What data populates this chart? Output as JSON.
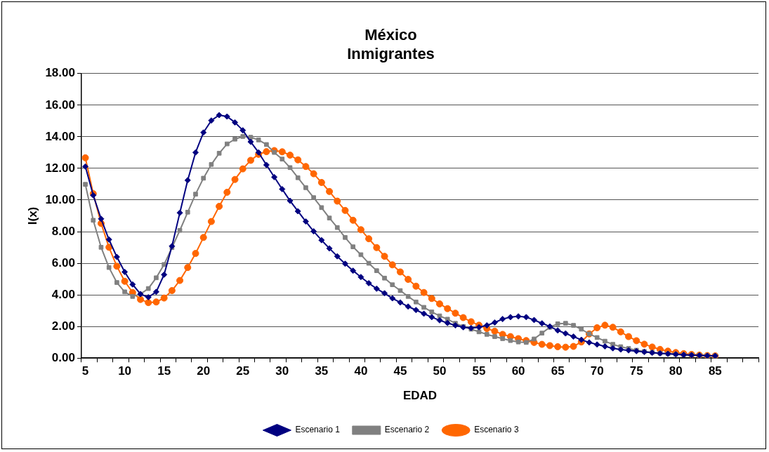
{
  "chart_data": {
    "type": "line",
    "title": [
      "México",
      "Inmigrantes"
    ],
    "xlabel": "EDAD",
    "ylabel": "I(x)",
    "x": [
      5,
      6,
      7,
      8,
      9,
      10,
      11,
      12,
      13,
      14,
      15,
      16,
      17,
      18,
      19,
      20,
      21,
      22,
      23,
      24,
      25,
      26,
      27,
      28,
      29,
      30,
      31,
      32,
      33,
      34,
      35,
      36,
      37,
      38,
      39,
      40,
      41,
      42,
      43,
      44,
      45,
      46,
      47,
      48,
      49,
      50,
      51,
      52,
      53,
      54,
      55,
      56,
      57,
      58,
      59,
      60,
      61,
      62,
      63,
      64,
      65,
      66,
      67,
      68,
      69,
      70,
      71,
      72,
      73,
      74,
      75,
      76,
      77,
      78,
      79,
      80,
      81,
      82,
      83,
      84,
      85
    ],
    "series": [
      {
        "name": "Escenario 1",
        "color": "#000080",
        "marker": "diamond",
        "values": [
          12.12,
          10.3,
          8.81,
          7.5,
          6.4,
          5.45,
          4.66,
          4.05,
          3.85,
          4.19,
          5.28,
          7.08,
          9.19,
          11.25,
          13.01,
          14.27,
          15.03,
          15.37,
          15.28,
          14.91,
          14.41,
          13.68,
          13.01,
          12.22,
          11.45,
          10.69,
          9.95,
          9.29,
          8.64,
          8.02,
          7.46,
          6.94,
          6.44,
          5.97,
          5.53,
          5.13,
          4.74,
          4.39,
          4.1,
          3.78,
          3.52,
          3.26,
          3.04,
          2.81,
          2.59,
          2.39,
          2.22,
          2.07,
          1.95,
          1.9,
          1.95,
          2.07,
          2.25,
          2.47,
          2.59,
          2.64,
          2.59,
          2.41,
          2.2,
          2.0,
          1.75,
          1.56,
          1.36,
          1.16,
          0.99,
          0.86,
          0.74,
          0.62,
          0.54,
          0.49,
          0.44,
          0.39,
          0.34,
          0.3,
          0.27,
          0.24,
          0.21,
          0.19,
          0.17,
          0.15,
          0.14
        ]
      },
      {
        "name": "Escenario 2",
        "color": "#808080",
        "marker": "square",
        "values": [
          10.99,
          8.72,
          7.01,
          5.73,
          4.78,
          4.19,
          3.9,
          4.05,
          4.4,
          5.08,
          5.92,
          6.99,
          8.08,
          9.23,
          10.37,
          11.38,
          12.25,
          12.96,
          13.55,
          13.85,
          14.02,
          13.97,
          13.8,
          13.51,
          13.01,
          12.59,
          12.05,
          11.41,
          10.78,
          10.15,
          9.52,
          8.86,
          8.26,
          7.63,
          7.04,
          6.54,
          6.0,
          5.53,
          5.06,
          4.64,
          4.27,
          3.9,
          3.55,
          3.21,
          2.92,
          2.67,
          2.46,
          2.2,
          2.0,
          1.83,
          1.66,
          1.5,
          1.36,
          1.23,
          1.11,
          1.02,
          0.99,
          1.21,
          1.58,
          1.95,
          2.17,
          2.2,
          2.07,
          1.83,
          1.53,
          1.3,
          1.07,
          0.87,
          0.72,
          0.61,
          0.5,
          0.42,
          0.36,
          0.31,
          0.27,
          0.24,
          0.21,
          0.19,
          0.17,
          0.15,
          0.14
        ]
      },
      {
        "name": "Escenario 3",
        "color": "#ff6600",
        "marker": "circle",
        "values": [
          12.67,
          10.4,
          8.52,
          7.01,
          5.81,
          4.86,
          4.15,
          3.71,
          3.51,
          3.55,
          3.8,
          4.27,
          4.91,
          5.73,
          6.62,
          7.63,
          8.64,
          9.6,
          10.49,
          11.3,
          11.97,
          12.51,
          12.89,
          13.06,
          13.13,
          13.05,
          12.84,
          12.54,
          12.12,
          11.66,
          11.11,
          10.54,
          9.93,
          9.34,
          8.72,
          8.12,
          7.55,
          6.99,
          6.44,
          5.9,
          5.45,
          4.98,
          4.55,
          4.15,
          3.77,
          3.43,
          3.13,
          2.84,
          2.56,
          2.3,
          2.08,
          1.87,
          1.7,
          1.5,
          1.36,
          1.23,
          1.11,
          0.99,
          0.87,
          0.79,
          0.72,
          0.69,
          0.74,
          1.02,
          1.53,
          1.92,
          2.08,
          1.95,
          1.66,
          1.36,
          1.1,
          0.88,
          0.7,
          0.55,
          0.44,
          0.35,
          0.28,
          0.23,
          0.19,
          0.16,
          0.14
        ]
      }
    ],
    "ylim": [
      0,
      18
    ],
    "yticks": [
      {
        "value": 0,
        "label": "0.00"
      },
      {
        "value": 2,
        "label": "2.00"
      },
      {
        "value": 4,
        "label": "4.00"
      },
      {
        "value": 6,
        "label": "6.00"
      },
      {
        "value": 8,
        "label": "8.00"
      },
      {
        "value": 10,
        "label": "10.00"
      },
      {
        "value": 12,
        "label": "12.00"
      },
      {
        "value": 14,
        "label": "14.00"
      },
      {
        "value": 16,
        "label": "16.00"
      },
      {
        "value": 18,
        "label": "18.00"
      }
    ],
    "xlim": [
      4.5,
      90.5
    ],
    "xticks": [
      {
        "value": 4.5,
        "label": null
      },
      5,
      {
        "value": 6.5,
        "label": null
      },
      {
        "value": 8.5,
        "label": null
      },
      10,
      {
        "value": 10.5,
        "label": null
      },
      {
        "value": 12.5,
        "label": null
      },
      {
        "value": 14.5,
        "label": null
      },
      15,
      {
        "value": 16.5,
        "label": null
      },
      {
        "value": 18.5,
        "label": null
      },
      20,
      {
        "value": 20.5,
        "label": null
      },
      {
        "value": 22.5,
        "label": null
      },
      {
        "value": 24.5,
        "label": null
      },
      25,
      {
        "value": 26.5,
        "label": null
      },
      {
        "value": 28.5,
        "label": null
      },
      30,
      {
        "value": 30.5,
        "label": null
      },
      {
        "value": 32.5,
        "label": null
      },
      {
        "value": 34.5,
        "label": null
      },
      35,
      {
        "value": 36.5,
        "label": null
      },
      {
        "value": 38.5,
        "label": null
      },
      40,
      {
        "value": 40.5,
        "label": null
      },
      {
        "value": 42.5,
        "label": null
      },
      {
        "value": 44.5,
        "label": null
      },
      45,
      {
        "value": 46.5,
        "label": null
      },
      {
        "value": 48.5,
        "label": null
      },
      50,
      {
        "value": 50.5,
        "label": null
      },
      {
        "value": 52.5,
        "label": null
      },
      {
        "value": 54.5,
        "label": null
      },
      55,
      {
        "value": 56.5,
        "label": null
      },
      {
        "value": 58.5,
        "label": null
      },
      60,
      {
        "value": 60.5,
        "label": null
      },
      {
        "value": 62.5,
        "label": null
      },
      {
        "value": 64.5,
        "label": null
      },
      65,
      {
        "value": 66.5,
        "label": null
      },
      {
        "value": 68.5,
        "label": null
      },
      70,
      {
        "value": 70.5,
        "label": null
      },
      {
        "value": 72.5,
        "label": null
      },
      {
        "value": 74.5,
        "label": null
      },
      75,
      {
        "value": 76.5,
        "label": null
      },
      {
        "value": 78.5,
        "label": null
      },
      80,
      {
        "value": 80.5,
        "label": null
      },
      {
        "value": 82.5,
        "label": null
      },
      {
        "value": 84.5,
        "label": null
      },
      85,
      {
        "value": 86.5,
        "label": null
      },
      {
        "value": 88.5,
        "label": null
      },
      {
        "value": 90.5,
        "label": null
      }
    ],
    "grid": "y",
    "legend": "bottom",
    "line_style": "solid"
  }
}
